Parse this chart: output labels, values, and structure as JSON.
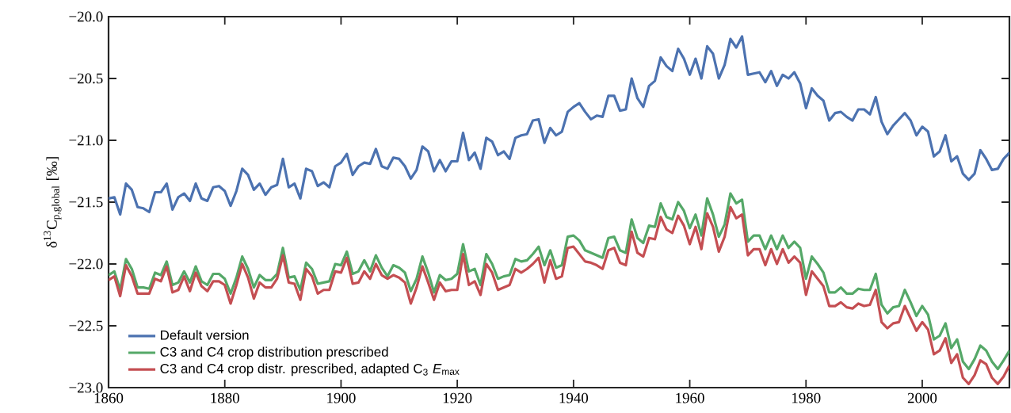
{
  "chart_data": {
    "type": "line",
    "ylabel": "δ$^{13}$C$_{p,global}$ [‰]",
    "x": [
      1860,
      1861,
      1862,
      1863,
      1864,
      1865,
      1866,
      1867,
      1868,
      1869,
      1870,
      1871,
      1872,
      1873,
      1874,
      1875,
      1876,
      1877,
      1878,
      1879,
      1880,
      1881,
      1882,
      1883,
      1884,
      1885,
      1886,
      1887,
      1888,
      1889,
      1890,
      1891,
      1892,
      1893,
      1894,
      1895,
      1896,
      1897,
      1898,
      1899,
      1900,
      1901,
      1902,
      1903,
      1904,
      1905,
      1906,
      1907,
      1908,
      1909,
      1910,
      1911,
      1912,
      1913,
      1914,
      1915,
      1916,
      1917,
      1918,
      1919,
      1920,
      1921,
      1922,
      1923,
      1924,
      1925,
      1926,
      1927,
      1928,
      1929,
      1930,
      1931,
      1932,
      1933,
      1934,
      1935,
      1936,
      1937,
      1938,
      1939,
      1940,
      1941,
      1942,
      1943,
      1944,
      1945,
      1946,
      1947,
      1948,
      1949,
      1950,
      1951,
      1952,
      1953,
      1954,
      1955,
      1956,
      1957,
      1958,
      1959,
      1960,
      1961,
      1962,
      1963,
      1964,
      1965,
      1966,
      1967,
      1968,
      1969,
      1970,
      1971,
      1972,
      1973,
      1974,
      1975,
      1976,
      1977,
      1978,
      1979,
      1980,
      1981,
      1982,
      1983,
      1984,
      1985,
      1986,
      1987,
      1988,
      1989,
      1990,
      1991,
      1992,
      1993,
      1994,
      1995,
      1996,
      1997,
      1998,
      1999,
      2000,
      2001,
      2002,
      2003,
      2004,
      2005,
      2006,
      2007,
      2008,
      2009,
      2010,
      2011,
      2012,
      2013,
      2014,
      2015
    ],
    "series": [
      {
        "name": "Default version",
        "color": "#4c72b0",
        "values": [
          -21.47,
          -21.46,
          -21.6,
          -21.35,
          -21.4,
          -21.54,
          -21.55,
          -21.58,
          -21.42,
          -21.42,
          -21.35,
          -21.56,
          -21.46,
          -21.43,
          -21.49,
          -21.35,
          -21.47,
          -21.49,
          -21.38,
          -21.37,
          -21.41,
          -21.53,
          -21.41,
          -21.23,
          -21.28,
          -21.4,
          -21.35,
          -21.44,
          -21.38,
          -21.36,
          -21.15,
          -21.38,
          -21.35,
          -21.47,
          -21.23,
          -21.25,
          -21.37,
          -21.34,
          -21.38,
          -21.21,
          -21.18,
          -21.11,
          -21.28,
          -21.21,
          -21.18,
          -21.19,
          -21.07,
          -21.21,
          -21.23,
          -21.14,
          -21.15,
          -21.21,
          -21.31,
          -21.24,
          -21.05,
          -21.09,
          -21.25,
          -21.16,
          -21.25,
          -21.17,
          -21.17,
          -20.94,
          -21.16,
          -21.1,
          -21.23,
          -20.98,
          -21.01,
          -21.12,
          -21.09,
          -21.15,
          -20.98,
          -20.96,
          -20.95,
          -20.84,
          -20.83,
          -21.02,
          -20.9,
          -20.96,
          -20.93,
          -20.77,
          -20.73,
          -20.7,
          -20.77,
          -20.83,
          -20.8,
          -20.81,
          -20.64,
          -20.64,
          -20.76,
          -20.75,
          -20.5,
          -20.66,
          -20.73,
          -20.56,
          -20.52,
          -20.33,
          -20.4,
          -20.44,
          -20.26,
          -20.34,
          -20.47,
          -20.34,
          -20.5,
          -20.24,
          -20.3,
          -20.5,
          -20.39,
          -20.18,
          -20.25,
          -20.16,
          -20.47,
          -20.46,
          -20.45,
          -20.53,
          -20.44,
          -20.56,
          -20.47,
          -20.5,
          -20.45,
          -20.54,
          -20.74,
          -20.58,
          -20.64,
          -20.68,
          -20.84,
          -20.78,
          -20.77,
          -20.81,
          -20.84,
          -20.75,
          -20.75,
          -20.79,
          -20.65,
          -20.85,
          -20.95,
          -20.88,
          -20.83,
          -20.78,
          -20.84,
          -20.96,
          -20.89,
          -20.93,
          -21.13,
          -21.09,
          -20.96,
          -21.17,
          -21.13,
          -21.27,
          -21.32,
          -21.27,
          -21.08,
          -21.15,
          -21.24,
          -21.23,
          -21.15,
          -21.1
        ]
      },
      {
        "name": "C3 and C4 crop distribution prescribed",
        "color": "#55a868",
        "values": [
          -22.09,
          -22.06,
          -22.21,
          -21.96,
          -22.04,
          -22.19,
          -22.19,
          -22.2,
          -22.07,
          -22.09,
          -21.98,
          -22.17,
          -22.15,
          -22.06,
          -22.15,
          -22.02,
          -22.14,
          -22.17,
          -22.08,
          -22.08,
          -22.12,
          -22.24,
          -22.11,
          -21.94,
          -22.04,
          -22.19,
          -22.09,
          -22.13,
          -22.13,
          -22.08,
          -21.87,
          -22.11,
          -22.1,
          -22.21,
          -21.99,
          -22.04,
          -22.16,
          -22.15,
          -22.14,
          -22.0,
          -22.01,
          -21.9,
          -22.08,
          -22.06,
          -21.97,
          -22.06,
          -21.93,
          -22.03,
          -22.1,
          -22.01,
          -22.03,
          -22.07,
          -22.22,
          -22.12,
          -21.94,
          -22.07,
          -22.23,
          -22.09,
          -22.13,
          -22.12,
          -22.08,
          -21.84,
          -22.06,
          -22.04,
          -22.17,
          -21.92,
          -22.0,
          -22.12,
          -22.1,
          -22.09,
          -21.96,
          -21.98,
          -21.97,
          -21.92,
          -21.86,
          -22.01,
          -21.89,
          -22.03,
          -22.01,
          -21.78,
          -21.77,
          -21.81,
          -21.89,
          -21.91,
          -21.93,
          -21.95,
          -21.79,
          -21.78,
          -21.89,
          -21.91,
          -21.64,
          -21.79,
          -21.83,
          -21.69,
          -21.7,
          -21.51,
          -21.62,
          -21.64,
          -21.5,
          -21.57,
          -21.71,
          -21.6,
          -21.77,
          -21.47,
          -21.6,
          -21.78,
          -21.68,
          -21.43,
          -21.51,
          -21.48,
          -21.82,
          -21.77,
          -21.77,
          -21.88,
          -21.77,
          -21.88,
          -21.77,
          -21.87,
          -21.82,
          -21.87,
          -22.12,
          -21.94,
          -22.0,
          -22.07,
          -22.23,
          -22.23,
          -22.19,
          -22.24,
          -22.24,
          -22.2,
          -22.21,
          -22.21,
          -22.08,
          -22.33,
          -22.4,
          -22.35,
          -22.34,
          -22.21,
          -22.31,
          -22.42,
          -22.34,
          -22.41,
          -22.61,
          -22.58,
          -22.48,
          -22.68,
          -22.61,
          -22.79,
          -22.85,
          -22.77,
          -22.66,
          -22.7,
          -22.79,
          -22.85,
          -22.78,
          -22.7
        ]
      },
      {
        "name": "C3 and C4 crop distr. prescribed, adapted C$_{3}$ *E*$_{max}$",
        "color": "#c44e52",
        "values": [
          -22.13,
          -22.1,
          -22.26,
          -22.01,
          -22.1,
          -22.24,
          -22.24,
          -22.24,
          -22.12,
          -22.14,
          -22.02,
          -22.23,
          -22.21,
          -22.1,
          -22.22,
          -22.07,
          -22.18,
          -22.22,
          -22.14,
          -22.14,
          -22.17,
          -22.32,
          -22.17,
          -22.0,
          -22.11,
          -22.28,
          -22.15,
          -22.19,
          -22.19,
          -22.12,
          -21.93,
          -22.15,
          -22.16,
          -22.29,
          -22.04,
          -22.1,
          -22.24,
          -22.21,
          -22.21,
          -22.06,
          -22.07,
          -21.95,
          -22.16,
          -22.15,
          -22.06,
          -22.12,
          -22.0,
          -22.09,
          -22.12,
          -22.09,
          -22.11,
          -22.15,
          -22.32,
          -22.19,
          -22.02,
          -22.15,
          -22.29,
          -22.15,
          -22.22,
          -22.21,
          -22.21,
          -21.92,
          -22.17,
          -22.14,
          -22.25,
          -22.0,
          -22.07,
          -22.21,
          -22.19,
          -22.17,
          -22.04,
          -22.07,
          -22.04,
          -22.0,
          -21.95,
          -22.15,
          -21.97,
          -22.12,
          -22.1,
          -21.87,
          -21.86,
          -21.92,
          -21.98,
          -21.99,
          -22.01,
          -22.04,
          -21.89,
          -21.87,
          -21.99,
          -22.01,
          -21.74,
          -21.91,
          -21.94,
          -21.79,
          -21.8,
          -21.62,
          -21.72,
          -21.75,
          -21.61,
          -21.69,
          -21.84,
          -21.7,
          -21.88,
          -21.59,
          -21.7,
          -21.9,
          -21.78,
          -21.54,
          -21.63,
          -21.6,
          -21.93,
          -21.88,
          -21.88,
          -22.01,
          -21.88,
          -22.0,
          -21.88,
          -21.99,
          -21.94,
          -21.99,
          -22.25,
          -22.06,
          -22.12,
          -22.18,
          -22.34,
          -22.34,
          -22.31,
          -22.35,
          -22.36,
          -22.32,
          -22.34,
          -22.33,
          -22.21,
          -22.47,
          -22.52,
          -22.48,
          -22.47,
          -22.34,
          -22.44,
          -22.54,
          -22.47,
          -22.53,
          -22.73,
          -22.7,
          -22.6,
          -22.8,
          -22.73,
          -22.92,
          -22.97,
          -22.9,
          -22.78,
          -22.81,
          -22.92,
          -22.97,
          -22.91,
          -22.82
        ]
      }
    ],
    "xlim": [
      1860,
      2015
    ],
    "ylim": [
      -23.0,
      -20.0
    ],
    "xticks": [
      1860,
      1880,
      1900,
      1920,
      1940,
      1960,
      1980,
      2000
    ],
    "yticks": [
      {
        "value": -23.0,
        "label": "−23.0"
      },
      {
        "value": -22.5,
        "label": "−22.5"
      },
      {
        "value": -22.0,
        "label": "−22.0"
      },
      {
        "value": -21.5,
        "label": "−21.5"
      },
      {
        "value": -21.0,
        "label": "−21.0"
      },
      {
        "value": -20.5,
        "label": "−20.5"
      },
      {
        "value": -20.0,
        "label": "−20.0"
      }
    ],
    "legend": "bottom left",
    "grid": false,
    "line_style": "solid"
  }
}
